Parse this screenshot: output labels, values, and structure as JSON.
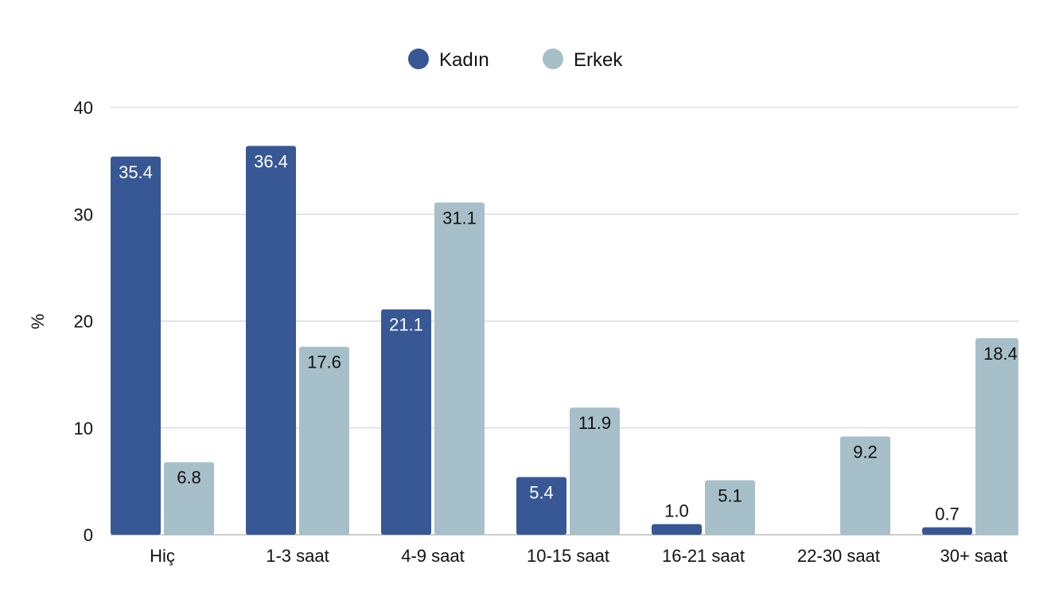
{
  "chart_data": {
    "type": "bar",
    "title": "",
    "xlabel": "",
    "ylabel": "%",
    "ylim": [
      0,
      40
    ],
    "yticks": [
      0,
      10,
      20,
      30,
      40
    ],
    "grid": true,
    "legend_position": "top-center",
    "categories": [
      "Hiç",
      "1-3 saat",
      "4-9 saat",
      "10-15 saat",
      "16-21 saat",
      "22-30 saat",
      "30+ saat"
    ],
    "series": [
      {
        "name": "Kadın",
        "color": "#375795",
        "values": [
          35.4,
          36.4,
          21.1,
          5.4,
          1.0,
          null,
          0.7
        ],
        "labels": [
          "35.4",
          "36.4",
          "21.1",
          "5.4",
          "1.0",
          "",
          "0.7"
        ]
      },
      {
        "name": "Erkek",
        "color": "#a7bfc9",
        "values": [
          6.8,
          17.6,
          31.1,
          11.9,
          5.1,
          9.2,
          18.4
        ],
        "labels": [
          "6.8",
          "17.6",
          "31.1",
          "11.9",
          "5.1",
          "9.2",
          "18.4"
        ]
      }
    ]
  }
}
